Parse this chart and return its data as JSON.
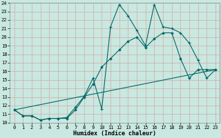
{
  "xlabel": "Humidex (Indice chaleur)",
  "xlim": [
    -0.5,
    23.5
  ],
  "ylim": [
    10,
    24
  ],
  "yticks": [
    10,
    11,
    12,
    13,
    14,
    15,
    16,
    17,
    18,
    19,
    20,
    21,
    22,
    23,
    24
  ],
  "xticks": [
    0,
    1,
    2,
    3,
    4,
    5,
    6,
    7,
    8,
    9,
    10,
    11,
    12,
    13,
    14,
    15,
    16,
    17,
    18,
    19,
    20,
    21,
    22,
    23
  ],
  "bg_color": "#c8e8e0",
  "grid_color": "#b0d4cc",
  "line_color": "#006666",
  "line1_x": [
    0,
    1,
    2,
    3,
    4,
    5,
    6,
    7,
    8,
    9,
    10,
    11,
    12,
    13,
    14,
    15,
    16,
    17,
    18,
    19,
    20,
    21,
    22,
    23
  ],
  "line1_y": [
    11.5,
    10.8,
    10.8,
    10.3,
    10.5,
    10.5,
    10.6,
    11.8,
    13.1,
    15.2,
    11.6,
    21.2,
    23.8,
    22.5,
    20.8,
    19.0,
    23.8,
    21.2,
    21.0,
    20.5,
    19.3,
    17.3,
    15.2,
    16.2
  ],
  "line2_x": [
    0,
    1,
    2,
    3,
    4,
    5,
    6,
    7,
    8,
    9,
    10,
    11,
    12,
    13,
    14,
    15,
    16,
    17,
    18,
    19,
    20,
    21,
    22,
    23
  ],
  "line2_y": [
    11.5,
    10.8,
    10.8,
    10.3,
    10.5,
    10.5,
    10.5,
    11.5,
    13.0,
    14.5,
    16.5,
    17.5,
    18.5,
    19.5,
    20.0,
    18.8,
    19.8,
    20.5,
    20.5,
    17.5,
    15.2,
    16.2,
    16.2,
    16.2
  ],
  "line3_x": [
    0,
    23
  ],
  "line3_y": [
    11.5,
    16.2
  ]
}
